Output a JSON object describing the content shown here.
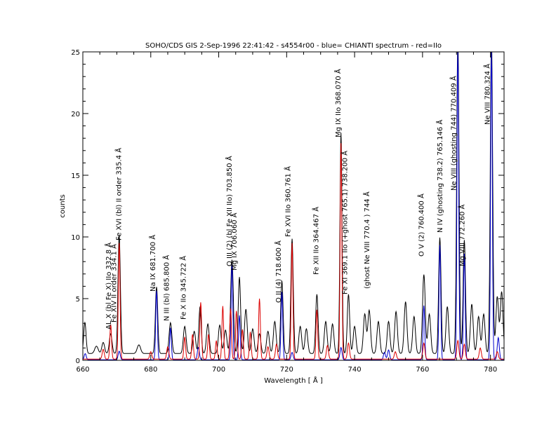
{
  "chart_data": {
    "type": "line",
    "title": "SOHO/CDS GIS   2-Sep-1996 22:41:42 - s4554r00 - blue= CHIANTI spectrum - red=IIo",
    "xlabel": "Wavelength [ Å ]",
    "ylabel": "counts",
    "xlim": [
      660,
      784
    ],
    "ylim": [
      0,
      25
    ],
    "xticks": [
      660,
      680,
      700,
      720,
      740,
      760,
      780
    ],
    "yticks": [
      0,
      5,
      10,
      15,
      20,
      25
    ],
    "grid": false,
    "colors": {
      "observed": "#000000",
      "chianti": "#0000cc",
      "secondorder": "#dd0000"
    },
    "series": [
      {
        "color": "#000000",
        "baseline": 0.55,
        "peaks": [
          [
            660.6,
            2.5,
            0.35
          ],
          [
            664.0,
            0.6,
            0.5
          ],
          [
            666.0,
            0.9,
            0.4
          ],
          [
            668.2,
            1.6,
            0.4
          ],
          [
            670.7,
            9.6,
            0.35
          ],
          [
            676.5,
            0.7,
            0.5
          ],
          [
            681.7,
            5.4,
            0.35
          ],
          [
            685.8,
            2.5,
            0.4
          ],
          [
            690.0,
            2.2,
            0.4
          ],
          [
            692.8,
            1.8,
            0.4
          ],
          [
            694.5,
            3.8,
            0.35
          ],
          [
            696.8,
            2.4,
            0.4
          ],
          [
            700.3,
            2.3,
            0.4
          ],
          [
            702.0,
            1.9,
            0.4
          ],
          [
            703.9,
            7.6,
            0.4
          ],
          [
            706.1,
            6.2,
            0.35
          ],
          [
            708.0,
            3.6,
            0.4
          ],
          [
            710.0,
            2.0,
            0.4
          ],
          [
            712.0,
            1.6,
            0.4
          ],
          [
            714.5,
            1.8,
            0.4
          ],
          [
            716.5,
            2.6,
            0.4
          ],
          [
            718.6,
            5.9,
            0.35
          ],
          [
            721.6,
            9.3,
            0.35
          ],
          [
            724.0,
            2.2,
            0.4
          ],
          [
            725.8,
            2.0,
            0.4
          ],
          [
            728.9,
            4.8,
            0.35
          ],
          [
            731.5,
            2.6,
            0.4
          ],
          [
            733.5,
            2.4,
            0.4
          ],
          [
            736.0,
            17.9,
            0.3
          ],
          [
            738.2,
            4.8,
            0.35
          ],
          [
            740.0,
            2.2,
            0.4
          ],
          [
            743.0,
            3.2,
            0.4
          ],
          [
            744.3,
            3.5,
            0.4
          ],
          [
            747.0,
            2.6,
            0.4
          ],
          [
            750.0,
            2.6,
            0.4
          ],
          [
            752.2,
            3.4,
            0.4
          ],
          [
            755.0,
            4.2,
            0.4
          ],
          [
            757.5,
            3.0,
            0.4
          ],
          [
            760.4,
            6.4,
            0.4
          ],
          [
            762.0,
            3.2,
            0.4
          ],
          [
            765.1,
            9.4,
            0.35
          ],
          [
            767.3,
            3.8,
            0.4
          ],
          [
            770.4,
            25.5,
            0.35
          ],
          [
            772.3,
            9.2,
            0.35
          ],
          [
            774.5,
            4.0,
            0.4
          ],
          [
            776.5,
            3.0,
            0.4
          ],
          [
            778.0,
            3.2,
            0.4
          ],
          [
            780.3,
            25.5,
            0.35
          ],
          [
            782.0,
            4.6,
            0.4
          ],
          [
            783.3,
            5.0,
            0.4
          ]
        ]
      },
      {
        "color": "#0000cc",
        "baseline": 0.04,
        "peaks": [
          [
            660.7,
            0.5,
            0.3
          ],
          [
            670.7,
            0.7,
            0.3
          ],
          [
            681.7,
            5.6,
            0.25
          ],
          [
            685.8,
            2.6,
            0.25
          ],
          [
            694.0,
            1.0,
            0.3
          ],
          [
            703.9,
            7.7,
            0.25
          ],
          [
            706.1,
            3.6,
            0.25
          ],
          [
            718.6,
            5.5,
            0.25
          ],
          [
            721.6,
            0.6,
            0.3
          ],
          [
            736.0,
            1.0,
            0.3
          ],
          [
            748.8,
            0.6,
            0.3
          ],
          [
            750.0,
            0.8,
            0.3
          ],
          [
            760.4,
            4.4,
            0.25
          ],
          [
            765.1,
            9.3,
            0.25
          ],
          [
            770.4,
            25.5,
            0.25
          ],
          [
            772.3,
            8.6,
            0.25
          ],
          [
            780.3,
            25.5,
            0.25
          ],
          [
            782.3,
            1.8,
            0.3
          ]
        ]
      },
      {
        "color": "#dd0000",
        "baseline": 0.1,
        "peaks": [
          [
            666.0,
            0.8,
            0.3
          ],
          [
            668.2,
            2.8,
            0.25
          ],
          [
            670.7,
            9.4,
            0.25
          ],
          [
            680.0,
            0.6,
            0.3
          ],
          [
            685.0,
            1.0,
            0.3
          ],
          [
            690.0,
            1.8,
            0.25
          ],
          [
            692.3,
            2.0,
            0.25
          ],
          [
            694.7,
            4.6,
            0.25
          ],
          [
            697.0,
            2.0,
            0.25
          ],
          [
            699.3,
            1.5,
            0.25
          ],
          [
            701.2,
            4.3,
            0.25
          ],
          [
            703.5,
            4.1,
            0.25
          ],
          [
            705.2,
            3.9,
            0.25
          ],
          [
            707.0,
            2.4,
            0.25
          ],
          [
            709.3,
            2.2,
            0.25
          ],
          [
            712.0,
            4.9,
            0.25
          ],
          [
            714.5,
            1.0,
            0.3
          ],
          [
            717.0,
            1.2,
            0.3
          ],
          [
            721.6,
            9.4,
            0.25
          ],
          [
            728.9,
            4.0,
            0.25
          ],
          [
            732.0,
            1.1,
            0.3
          ],
          [
            736.0,
            17.5,
            0.25
          ],
          [
            738.2,
            1.3,
            0.3
          ],
          [
            752.0,
            0.6,
            0.3
          ],
          [
            760.4,
            1.3,
            0.3
          ],
          [
            770.4,
            1.5,
            0.3
          ],
          [
            772.3,
            1.2,
            0.3
          ],
          [
            777.0,
            0.9,
            0.3
          ],
          [
            782.0,
            0.6,
            0.3
          ]
        ]
      }
    ],
    "annotations": [
      {
        "text": "AL X (bl Fe X) IIo 332.8 Å",
        "x": 668.3
      },
      {
        "text": "Fe XIV II order 334.1 Å",
        "x": 669.8
      },
      {
        "text": "Fe XVI (bl) II order 335.4 Å",
        "x": 671.3
      },
      {
        "text": "Na IX  681.700 Å",
        "x": 681.3
      },
      {
        "text": "N III (bl) 685.800 Å",
        "x": 685.3
      },
      {
        "text": "Fe X IIo 345.722 Å",
        "x": 690.3
      },
      {
        "text": "O III (2) (bl Fe XII IIo) 703.850 Å",
        "x": 703.8
      },
      {
        "text": "Mg IX 706.060 Å",
        "x": 705.3
      },
      {
        "text": "O II (4) 718.600 Å",
        "x": 718.3
      },
      {
        "text": "Fe XVI IIo 360.761 Å",
        "x": 721.1
      },
      {
        "text": "Fe XII IIo 364.467 Å",
        "x": 729.3
      },
      {
        "text": "Mg IX IIo 368.070 Å",
        "x": 735.8
      },
      {
        "text": "Fe XI 369.1 IIo (+ghost 765.1) 738.200 Å",
        "x": 737.8
      },
      {
        "text": "(ghost Ne VIII 770.4 ) 744 Å",
        "x": 744.3
      },
      {
        "text": "O V (2) 760.400 Å",
        "x": 760.3
      },
      {
        "text": "N IV (ghosting 738.2) 765.146 Å",
        "x": 765.8
      },
      {
        "text": "Ne VIII (ghosting 744) 770.409 Å",
        "x": 769.8
      },
      {
        "text": "Mg VIII  772.260 Å",
        "x": 772.3
      },
      {
        "text": "Ne VIII 780.324 Å",
        "x": 779.8
      }
    ]
  }
}
